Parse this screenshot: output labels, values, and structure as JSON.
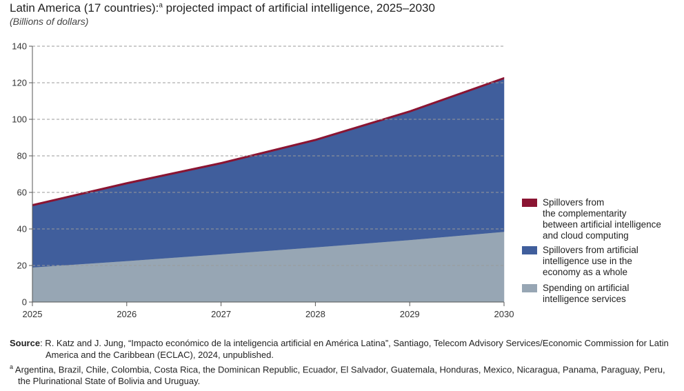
{
  "chart_data": {
    "type": "area",
    "stacked": true,
    "title": "Latin America (17 countries):",
    "title_marker": "a",
    "title_rest": " projected impact of artificial intelligence, 2025–2030",
    "subtitle": "(Billions of dollars)",
    "x": [
      "2025",
      "2026",
      "2027",
      "2028",
      "2029",
      "2030"
    ],
    "ylim": [
      0,
      140
    ],
    "yticks": [
      0,
      20,
      40,
      60,
      80,
      100,
      120,
      140
    ],
    "grid": "dashed-horizontal",
    "legend_position": "right",
    "series": [
      {
        "name": "Spending on artificial intelligence services",
        "color": "#97a6b4",
        "values": [
          19,
          22.5,
          26.2,
          30,
          34,
          38.5
        ]
      },
      {
        "name": "Spillovers from artificial intelligence use in the economy as a whole",
        "color": "#405e9c",
        "values": [
          33.5,
          42,
          49.3,
          58.2,
          69.8,
          83.5
        ]
      },
      {
        "name": "Spillovers from the complementarity between artificial intelligence and cloud computing",
        "color": "#8a1432",
        "values": [
          1,
          1,
          1,
          1,
          1,
          1
        ]
      }
    ]
  },
  "legend": [
    {
      "lines": [
        "Spillovers from",
        "the complementarity",
        "between artificial intelligence",
        "and cloud computing"
      ],
      "color": "#8a1432"
    },
    {
      "lines": [
        "Spillovers from artificial",
        "intelligence use in the",
        "economy as a whole"
      ],
      "color": "#405e9c"
    },
    {
      "lines": [
        "Spending on artificial",
        "intelligence services"
      ],
      "color": "#97a6b4"
    }
  ],
  "notes": {
    "source_label": "Source",
    "source_text": ": R. Katz and J. Jung, “Impacto económico de la inteligencia artificial en América Latina”, Santiago, Telecom Advisory Services/Economic Commission for Latin America and the Caribbean (ECLAC), 2024, unpublished.",
    "footnote_marker": "a",
    "footnote_text": " Argentina, Brazil, Chile, Colombia, Costa Rica, the Dominican Republic, Ecuador, El Salvador, Guatemala, Honduras, Mexico, Nicaragua, Panama, Paraguay, Peru, the Plurinational State of Bolivia and Uruguay."
  }
}
